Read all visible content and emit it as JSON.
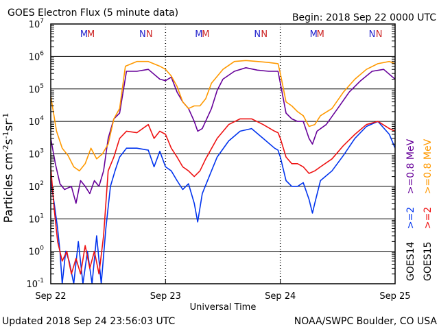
{
  "header": {
    "title": "GOES Electron Flux (5 minute data)",
    "begin": "Begin: 2018 Sep 22 0000 UTC"
  },
  "footer": {
    "updated": "Updated 2018 Sep 24 23:56:03 UTC",
    "credit": "NOAA/SWPC Boulder, CO USA"
  },
  "legend": {
    "goes14": "GOES14",
    "goes15": "GOES15",
    "e2_14": ">=2",
    "e2_15": ">=2",
    "e08_14": ">=0.8 MeV",
    "e08_15": ">=0.8 MeV",
    "colors": {
      "goes14_ge2": "#0033ee",
      "goes15_ge2": "#ee1111",
      "goes14_ge08": "#660099",
      "goes15_ge08": "#ff9900"
    }
  },
  "markers": {
    "top": [
      {
        "label": "M",
        "color": "#2222cc",
        "day": 0.29
      },
      {
        "label": "M",
        "color": "#cc2222",
        "day": 0.35
      },
      {
        "label": "N",
        "color": "#2222cc",
        "day": 0.8
      },
      {
        "label": "N",
        "color": "#cc2222",
        "day": 0.86
      },
      {
        "label": "M",
        "color": "#2222cc",
        "day": 1.29
      },
      {
        "label": "M",
        "color": "#cc2222",
        "day": 1.35
      },
      {
        "label": "N",
        "color": "#2222cc",
        "day": 1.8
      },
      {
        "label": "N",
        "color": "#cc2222",
        "day": 1.86
      },
      {
        "label": "M",
        "color": "#2222cc",
        "day": 2.29
      },
      {
        "label": "M",
        "color": "#cc2222",
        "day": 2.35
      },
      {
        "label": "N",
        "color": "#2222cc",
        "day": 2.8
      },
      {
        "label": "N",
        "color": "#cc2222",
        "day": 2.86
      }
    ]
  },
  "chart_data": {
    "type": "line",
    "title": "GOES Electron Flux (5 minute data)",
    "xlabel": "Universal Time",
    "ylabel": "Particles cm⁻²s⁻¹sr⁻¹",
    "ylabel_parts": {
      "base": "Particles cm",
      "e1": "-2",
      "mid1": "s",
      "e2": "-1",
      "mid2": "sr",
      "e3": "-1"
    },
    "yscale": "log",
    "ylim": [
      0.1,
      10000000
    ],
    "xlim": [
      0,
      3
    ],
    "x_ticks": [
      {
        "x": 0,
        "label": "Sep 22"
      },
      {
        "x": 1,
        "label": "Sep 23"
      },
      {
        "x": 2,
        "label": "Sep 24"
      },
      {
        "x": 3,
        "label": "Sep 25"
      }
    ],
    "y_ticks": [
      {
        "exp": -1,
        "base": "10",
        "sup": "-1"
      },
      {
        "exp": 0,
        "base": "10",
        "sup": "0"
      },
      {
        "exp": 1,
        "base": "10",
        "sup": "1"
      },
      {
        "exp": 2,
        "base": "10",
        "sup": "2"
      },
      {
        "exp": 3,
        "base": "10",
        "sup": "3"
      },
      {
        "exp": 4,
        "base": "10",
        "sup": "4"
      },
      {
        "exp": 5,
        "base": "10",
        "sup": "5"
      },
      {
        "exp": 6,
        "base": "10",
        "sup": "6"
      },
      {
        "exp": 7,
        "base": "10",
        "sup": "7"
      }
    ],
    "threshold": 1000,
    "series": [
      {
        "name": "GOES14 >=0.8 MeV",
        "color": "#660099",
        "points": [
          [
            0,
            3000
          ],
          [
            0.04,
            500
          ],
          [
            0.08,
            120
          ],
          [
            0.12,
            80
          ],
          [
            0.18,
            100
          ],
          [
            0.22,
            30
          ],
          [
            0.26,
            150
          ],
          [
            0.3,
            100
          ],
          [
            0.34,
            60
          ],
          [
            0.38,
            150
          ],
          [
            0.42,
            100
          ],
          [
            0.46,
            300
          ],
          [
            0.5,
            3000
          ],
          [
            0.55,
            12000
          ],
          [
            0.6,
            18000
          ],
          [
            0.66,
            350000
          ],
          [
            0.75,
            350000
          ],
          [
            0.85,
            400000
          ],
          [
            0.95,
            200000
          ],
          [
            1.0,
            180000
          ],
          [
            1.05,
            230000
          ],
          [
            1.1,
            80000
          ],
          [
            1.15,
            40000
          ],
          [
            1.2,
            25000
          ],
          [
            1.25,
            10000
          ],
          [
            1.28,
            5000
          ],
          [
            1.32,
            6000
          ],
          [
            1.4,
            25000
          ],
          [
            1.45,
            90000
          ],
          [
            1.5,
            200000
          ],
          [
            1.6,
            350000
          ],
          [
            1.7,
            450000
          ],
          [
            1.8,
            380000
          ],
          [
            1.9,
            350000
          ],
          [
            1.98,
            350000
          ],
          [
            2.0,
            150000
          ],
          [
            2.05,
            18000
          ],
          [
            2.1,
            12000
          ],
          [
            2.15,
            10000
          ],
          [
            2.2,
            10000
          ],
          [
            2.25,
            3000
          ],
          [
            2.28,
            2000
          ],
          [
            2.32,
            5000
          ],
          [
            2.4,
            8000
          ],
          [
            2.5,
            25000
          ],
          [
            2.6,
            80000
          ],
          [
            2.7,
            180000
          ],
          [
            2.8,
            350000
          ],
          [
            2.9,
            400000
          ],
          [
            3.0,
            200000
          ]
        ]
      },
      {
        "name": "GOES15 >=0.8 MeV",
        "color": "#ff9900",
        "points": [
          [
            0,
            60000
          ],
          [
            0.05,
            5000
          ],
          [
            0.1,
            1500
          ],
          [
            0.15,
            900
          ],
          [
            0.2,
            400
          ],
          [
            0.25,
            300
          ],
          [
            0.3,
            500
          ],
          [
            0.35,
            1500
          ],
          [
            0.4,
            700
          ],
          [
            0.45,
            1000
          ],
          [
            0.5,
            2000
          ],
          [
            0.55,
            12000
          ],
          [
            0.6,
            25000
          ],
          [
            0.65,
            500000
          ],
          [
            0.75,
            700000
          ],
          [
            0.85,
            700000
          ],
          [
            0.95,
            500000
          ],
          [
            1.0,
            400000
          ],
          [
            1.05,
            250000
          ],
          [
            1.1,
            120000
          ],
          [
            1.15,
            40000
          ],
          [
            1.2,
            25000
          ],
          [
            1.25,
            30000
          ],
          [
            1.3,
            30000
          ],
          [
            1.35,
            50000
          ],
          [
            1.4,
            150000
          ],
          [
            1.5,
            400000
          ],
          [
            1.6,
            700000
          ],
          [
            1.7,
            750000
          ],
          [
            1.8,
            700000
          ],
          [
            1.9,
            650000
          ],
          [
            1.98,
            600000
          ],
          [
            2.0,
            300000
          ],
          [
            2.05,
            40000
          ],
          [
            2.1,
            30000
          ],
          [
            2.15,
            20000
          ],
          [
            2.2,
            15000
          ],
          [
            2.25,
            7000
          ],
          [
            2.3,
            8000
          ],
          [
            2.35,
            15000
          ],
          [
            2.45,
            25000
          ],
          [
            2.55,
            80000
          ],
          [
            2.65,
            200000
          ],
          [
            2.75,
            400000
          ],
          [
            2.85,
            600000
          ],
          [
            2.95,
            700000
          ],
          [
            3.0,
            600000
          ]
        ]
      },
      {
        "name": "GOES14 >=2 MeV",
        "color": "#0033ee",
        "points": [
          [
            0,
            150
          ],
          [
            0.03,
            30
          ],
          [
            0.06,
            5
          ],
          [
            0.08,
            1
          ],
          [
            0.1,
            0.1
          ],
          [
            0.13,
            1
          ],
          [
            0.16,
            0.5
          ],
          [
            0.2,
            0.1
          ],
          [
            0.24,
            2
          ],
          [
            0.28,
            0.1
          ],
          [
            0.32,
            1
          ],
          [
            0.36,
            0.1
          ],
          [
            0.4,
            3
          ],
          [
            0.44,
            0.1
          ],
          [
            0.48,
            5
          ],
          [
            0.52,
            100
          ],
          [
            0.56,
            300
          ],
          [
            0.6,
            800
          ],
          [
            0.66,
            1500
          ],
          [
            0.75,
            1500
          ],
          [
            0.85,
            1300
          ],
          [
            0.9,
            400
          ],
          [
            0.95,
            1200
          ],
          [
            1.0,
            400
          ],
          [
            1.05,
            300
          ],
          [
            1.1,
            150
          ],
          [
            1.15,
            80
          ],
          [
            1.2,
            120
          ],
          [
            1.25,
            30
          ],
          [
            1.28,
            8
          ],
          [
            1.32,
            60
          ],
          [
            1.4,
            300
          ],
          [
            1.45,
            800
          ],
          [
            1.55,
            2500
          ],
          [
            1.65,
            5000
          ],
          [
            1.75,
            6000
          ],
          [
            1.85,
            3000
          ],
          [
            1.95,
            1500
          ],
          [
            1.98,
            1300
          ],
          [
            2.0,
            800
          ],
          [
            2.05,
            150
          ],
          [
            2.1,
            100
          ],
          [
            2.15,
            100
          ],
          [
            2.2,
            130
          ],
          [
            2.25,
            40
          ],
          [
            2.28,
            15
          ],
          [
            2.3,
            30
          ],
          [
            2.35,
            150
          ],
          [
            2.45,
            300
          ],
          [
            2.55,
            900
          ],
          [
            2.65,
            3000
          ],
          [
            2.75,
            7000
          ],
          [
            2.85,
            10000
          ],
          [
            2.95,
            4000
          ],
          [
            3.0,
            1500
          ]
        ]
      },
      {
        "name": "GOES15 >=2 MeV",
        "color": "#ee1111",
        "points": [
          [
            0,
            400
          ],
          [
            0.03,
            20
          ],
          [
            0.06,
            2
          ],
          [
            0.1,
            0.5
          ],
          [
            0.14,
            1
          ],
          [
            0.18,
            0.2
          ],
          [
            0.22,
            0.6
          ],
          [
            0.26,
            0.2
          ],
          [
            0.3,
            1.5
          ],
          [
            0.34,
            0.3
          ],
          [
            0.38,
            1
          ],
          [
            0.42,
            0.2
          ],
          [
            0.46,
            3
          ],
          [
            0.5,
            300
          ],
          [
            0.55,
            800
          ],
          [
            0.6,
            3000
          ],
          [
            0.66,
            5000
          ],
          [
            0.75,
            4500
          ],
          [
            0.85,
            8000
          ],
          [
            0.9,
            3000
          ],
          [
            0.95,
            5000
          ],
          [
            1.0,
            4000
          ],
          [
            1.05,
            1500
          ],
          [
            1.1,
            800
          ],
          [
            1.15,
            400
          ],
          [
            1.2,
            300
          ],
          [
            1.25,
            200
          ],
          [
            1.3,
            300
          ],
          [
            1.35,
            700
          ],
          [
            1.45,
            3000
          ],
          [
            1.55,
            8000
          ],
          [
            1.65,
            12000
          ],
          [
            1.75,
            12000
          ],
          [
            1.85,
            8000
          ],
          [
            1.95,
            5000
          ],
          [
            1.98,
            4500
          ],
          [
            2.0,
            3000
          ],
          [
            2.05,
            800
          ],
          [
            2.1,
            500
          ],
          [
            2.15,
            500
          ],
          [
            2.2,
            400
          ],
          [
            2.25,
            250
          ],
          [
            2.3,
            300
          ],
          [
            2.35,
            400
          ],
          [
            2.45,
            700
          ],
          [
            2.55,
            1800
          ],
          [
            2.65,
            4000
          ],
          [
            2.75,
            8000
          ],
          [
            2.85,
            10000
          ],
          [
            2.95,
            6000
          ],
          [
            3.0,
            5000
          ]
        ]
      }
    ]
  }
}
